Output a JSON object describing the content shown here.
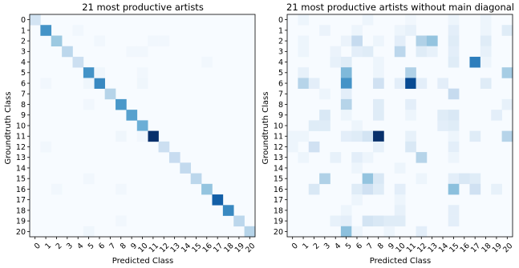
{
  "chart_data": [
    {
      "type": "heatmap",
      "title": "21 most productive artists",
      "xlabel": "Predicted Class",
      "ylabel": "Groundtruth Class",
      "x_ticks": [
        "0",
        "1",
        "2",
        "3",
        "4",
        "5",
        "6",
        "7",
        "8",
        "9",
        "10",
        "11",
        "12",
        "13",
        "14",
        "15",
        "16",
        "17",
        "18",
        "19",
        "20"
      ],
      "y_ticks": [
        "0",
        "1",
        "2",
        "3",
        "4",
        "5",
        "6",
        "7",
        "8",
        "9",
        "10",
        "11",
        "12",
        "13",
        "14",
        "15",
        "16",
        "17",
        "18",
        "19",
        "20"
      ],
      "colormap": "Blues",
      "vmax": 1.0,
      "cells": [
        [
          0,
          0,
          0.18
        ],
        [
          1,
          1,
          0.62
        ],
        [
          2,
          2,
          0.38
        ],
        [
          3,
          3,
          0.28
        ],
        [
          4,
          4,
          0.22
        ],
        [
          5,
          5,
          0.62
        ],
        [
          6,
          6,
          0.66
        ],
        [
          7,
          7,
          0.3
        ],
        [
          8,
          8,
          0.6
        ],
        [
          9,
          9,
          0.56
        ],
        [
          10,
          10,
          0.5
        ],
        [
          11,
          11,
          1.0
        ],
        [
          12,
          12,
          0.22
        ],
        [
          13,
          13,
          0.24
        ],
        [
          14,
          14,
          0.26
        ],
        [
          15,
          15,
          0.28
        ],
        [
          16,
          16,
          0.4
        ],
        [
          17,
          17,
          0.82
        ],
        [
          18,
          18,
          0.66
        ],
        [
          19,
          19,
          0.28
        ],
        [
          20,
          20,
          0.3
        ],
        [
          1,
          4,
          0.03
        ],
        [
          2,
          6,
          0.03
        ],
        [
          2,
          11,
          0.03
        ],
        [
          2,
          12,
          0.03
        ],
        [
          3,
          9,
          0.03
        ],
        [
          3,
          10,
          0.03
        ],
        [
          4,
          16,
          0.03
        ],
        [
          5,
          6,
          0.04
        ],
        [
          5,
          10,
          0.03
        ],
        [
          6,
          1,
          0.03
        ],
        [
          6,
          5,
          0.04
        ],
        [
          6,
          10,
          0.04
        ],
        [
          8,
          5,
          0.03
        ],
        [
          11,
          8,
          0.04
        ],
        [
          11,
          10,
          0.03
        ],
        [
          12,
          1,
          0.03
        ],
        [
          15,
          5,
          0.03
        ],
        [
          16,
          2,
          0.03
        ],
        [
          16,
          8,
          0.03
        ],
        [
          19,
          8,
          0.03
        ],
        [
          20,
          5,
          0.04
        ]
      ]
    },
    {
      "type": "heatmap",
      "title": "21 most productive artists without main diagonal",
      "xlabel": "Predicted Class",
      "ylabel": "Groundtruth Class",
      "x_ticks": [
        "0",
        "1",
        "2",
        "3",
        "4",
        "5",
        "6",
        "7",
        "8",
        "9",
        "10",
        "11",
        "12",
        "13",
        "14",
        "15",
        "16",
        "17",
        "18",
        "19",
        "20"
      ],
      "y_ticks": [
        "0",
        "1",
        "2",
        "3",
        "4",
        "5",
        "6",
        "7",
        "8",
        "9",
        "10",
        "11",
        "12",
        "13",
        "14",
        "15",
        "16",
        "17",
        "18",
        "19",
        "20"
      ],
      "colormap": "Blues",
      "vmax": 1.0,
      "cells": [
        [
          0,
          1,
          0.05
        ],
        [
          0,
          7,
          0.05
        ],
        [
          0,
          11,
          0.03
        ],
        [
          0,
          15,
          0.05
        ],
        [
          0,
          18,
          0.05
        ],
        [
          1,
          3,
          0.06
        ],
        [
          1,
          6,
          0.05
        ],
        [
          1,
          10,
          0.05
        ],
        [
          1,
          11,
          0.08
        ],
        [
          1,
          15,
          0.1
        ],
        [
          1,
          18,
          0.05
        ],
        [
          1,
          20,
          0.12
        ],
        [
          2,
          1,
          0.05
        ],
        [
          2,
          5,
          0.06
        ],
        [
          2,
          6,
          0.25
        ],
        [
          2,
          8,
          0.05
        ],
        [
          2,
          10,
          0.1
        ],
        [
          2,
          12,
          0.32
        ],
        [
          2,
          13,
          0.4
        ],
        [
          2,
          15,
          0.12
        ],
        [
          2,
          18,
          0.12
        ],
        [
          3,
          1,
          0.05
        ],
        [
          3,
          4,
          0.06
        ],
        [
          3,
          6,
          0.1
        ],
        [
          3,
          7,
          0.12
        ],
        [
          3,
          10,
          0.28
        ],
        [
          3,
          12,
          0.12
        ],
        [
          3,
          13,
          0.08
        ],
        [
          3,
          15,
          0.1
        ],
        [
          3,
          18,
          0.08
        ],
        [
          4,
          4,
          0.08
        ],
        [
          4,
          5,
          0.12
        ],
        [
          4,
          8,
          0.05
        ],
        [
          4,
          15,
          0.12
        ],
        [
          4,
          17,
          0.7
        ],
        [
          4,
          18,
          0.05
        ],
        [
          5,
          1,
          0.08
        ],
        [
          5,
          5,
          0.45
        ],
        [
          5,
          8,
          0.05
        ],
        [
          5,
          11,
          0.32
        ],
        [
          5,
          20,
          0.35
        ],
        [
          6,
          1,
          0.3
        ],
        [
          6,
          2,
          0.1
        ],
        [
          6,
          5,
          0.62
        ],
        [
          6,
          8,
          0.2
        ],
        [
          6,
          10,
          0.1
        ],
        [
          6,
          11,
          0.9
        ],
        [
          6,
          12,
          0.1
        ],
        [
          6,
          14,
          0.1
        ],
        [
          6,
          18,
          0.12
        ],
        [
          7,
          3,
          0.05
        ],
        [
          7,
          5,
          0.1
        ],
        [
          7,
          15,
          0.25
        ],
        [
          8,
          5,
          0.3
        ],
        [
          8,
          8,
          0.12
        ],
        [
          8,
          11,
          0.1
        ],
        [
          8,
          20,
          0.08
        ],
        [
          9,
          3,
          0.15
        ],
        [
          9,
          5,
          0.05
        ],
        [
          9,
          8,
          0.12
        ],
        [
          9,
          11,
          0.05
        ],
        [
          9,
          14,
          0.12
        ],
        [
          9,
          15,
          0.15
        ],
        [
          9,
          19,
          0.1
        ],
        [
          10,
          2,
          0.12
        ],
        [
          10,
          3,
          0.12
        ],
        [
          10,
          6,
          0.05
        ],
        [
          10,
          14,
          0.1
        ],
        [
          10,
          15,
          0.12
        ],
        [
          11,
          0,
          0.05
        ],
        [
          11,
          1,
          0.05
        ],
        [
          11,
          5,
          0.1
        ],
        [
          11,
          6,
          0.12
        ],
        [
          11,
          7,
          0.18
        ],
        [
          11,
          8,
          1.0
        ],
        [
          11,
          11,
          0.08
        ],
        [
          11,
          15,
          0.05
        ],
        [
          11,
          17,
          0.12
        ],
        [
          11,
          20,
          0.3
        ],
        [
          12,
          0,
          0.05
        ],
        [
          12,
          2,
          0.2
        ],
        [
          12,
          8,
          0.08
        ],
        [
          12,
          11,
          0.15
        ],
        [
          12,
          15,
          0.1
        ],
        [
          13,
          1,
          0.05
        ],
        [
          13,
          4,
          0.08
        ],
        [
          13,
          6,
          0.1
        ],
        [
          13,
          7,
          0.05
        ],
        [
          13,
          12,
          0.3
        ],
        [
          13,
          15,
          0.05
        ],
        [
          14,
          6,
          0.05
        ],
        [
          14,
          10,
          0.05
        ],
        [
          15,
          3,
          0.32
        ],
        [
          15,
          7,
          0.4
        ],
        [
          15,
          8,
          0.15
        ],
        [
          15,
          12,
          0.05
        ],
        [
          15,
          15,
          0.1
        ],
        [
          15,
          16,
          0.15
        ],
        [
          15,
          17,
          0.12
        ],
        [
          16,
          2,
          0.15
        ],
        [
          16,
          6,
          0.12
        ],
        [
          16,
          7,
          0.2
        ],
        [
          16,
          8,
          0.12
        ],
        [
          16,
          10,
          0.1
        ],
        [
          16,
          15,
          0.42
        ],
        [
          16,
          17,
          0.2
        ],
        [
          16,
          19,
          0.08
        ],
        [
          17,
          6,
          0.05
        ],
        [
          17,
          10,
          0.05
        ],
        [
          18,
          5,
          0.05
        ],
        [
          18,
          10,
          0.08
        ],
        [
          18,
          15,
          0.1
        ],
        [
          19,
          4,
          0.08
        ],
        [
          19,
          5,
          0.1
        ],
        [
          19,
          7,
          0.18
        ],
        [
          19,
          8,
          0.15
        ],
        [
          19,
          9,
          0.12
        ],
        [
          19,
          10,
          0.12
        ],
        [
          19,
          15,
          0.1
        ],
        [
          20,
          5,
          0.42
        ],
        [
          20,
          6,
          0.05
        ],
        [
          20,
          9,
          0.05
        ],
        [
          20,
          12,
          0.1
        ]
      ]
    }
  ]
}
